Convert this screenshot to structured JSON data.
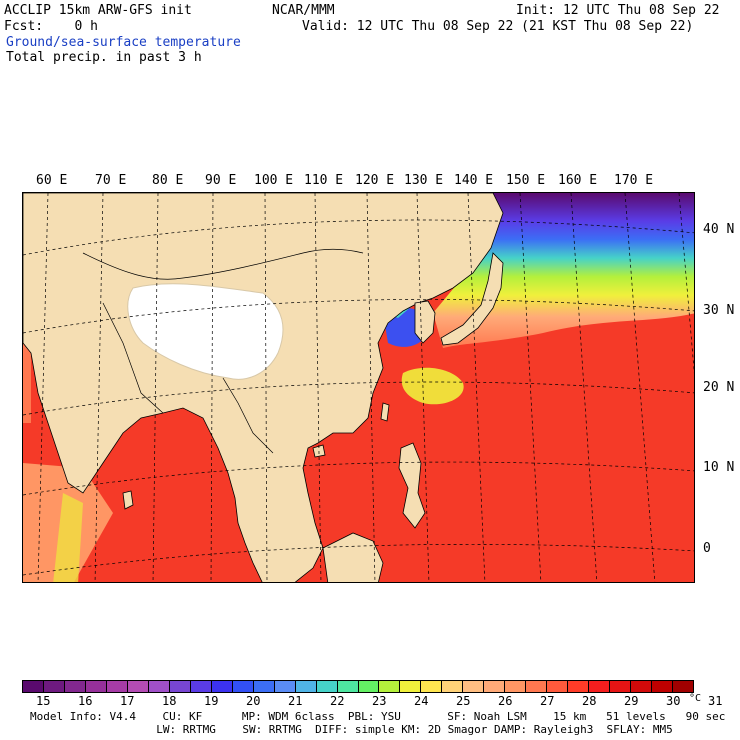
{
  "header": {
    "title": "ACCLIP 15km ARW-GFS init",
    "org": "NCAR/MMM",
    "init": "Init: 12 UTC Thu 08 Sep 22",
    "fcst": "Fcst:    0 h",
    "valid": "Valid: 12 UTC Thu 08 Sep 22 (21 KST Thu 08 Sep 22)",
    "field1": "Ground/sea-surface temperature",
    "field2": "Total precip. in past 3 h"
  },
  "map": {
    "lon_labels": [
      "60 E",
      "70 E",
      "80 E",
      "90 E",
      "100 E",
      "110 E",
      "120 E",
      "130 E",
      "140 E",
      "150 E",
      "160 E",
      "170 E"
    ],
    "lat_labels": [
      "40 N",
      "30 N",
      "20 N",
      "10 N",
      "0"
    ],
    "land_color": "#f5deb3",
    "plateau_color": "#ffffff"
  },
  "colorbar": {
    "colors": [
      "#5a0a6e",
      "#6e1a80",
      "#82288f",
      "#96309a",
      "#a63ca6",
      "#b44cb4",
      "#a050c8",
      "#7846d2",
      "#5a3ce6",
      "#3c32f0",
      "#3250f5",
      "#3c6ef5",
      "#5a8cf5",
      "#50b4e6",
      "#46d2c8",
      "#4ee6a0",
      "#64f064",
      "#b4f03c",
      "#f0f03c",
      "#ffe650",
      "#ffd278",
      "#ffbe82",
      "#ffaa78",
      "#ff9664",
      "#ff7850",
      "#ff5a3c",
      "#ff3c28",
      "#f51e1e",
      "#e61414",
      "#d20a0a",
      "#be0000",
      "#a00000"
    ],
    "labels": [
      "15",
      "16",
      "17",
      "18",
      "19",
      "20",
      "21",
      "22",
      "23",
      "24",
      "25",
      "26",
      "27",
      "28",
      "29",
      "30",
      "31"
    ],
    "unit": "°C"
  },
  "footer": {
    "line1": "Model Info: V4.4    CU: KF      MP: WDM 6class  PBL: YSU       SF: Noah LSM    15 km   51 levels   90 sec",
    "line2": "          LW: RRTMG    SW: RRTMG  DIFF: simple KM: 2D Smagor DAMP: Rayleigh3  SFLAY: MM5"
  }
}
